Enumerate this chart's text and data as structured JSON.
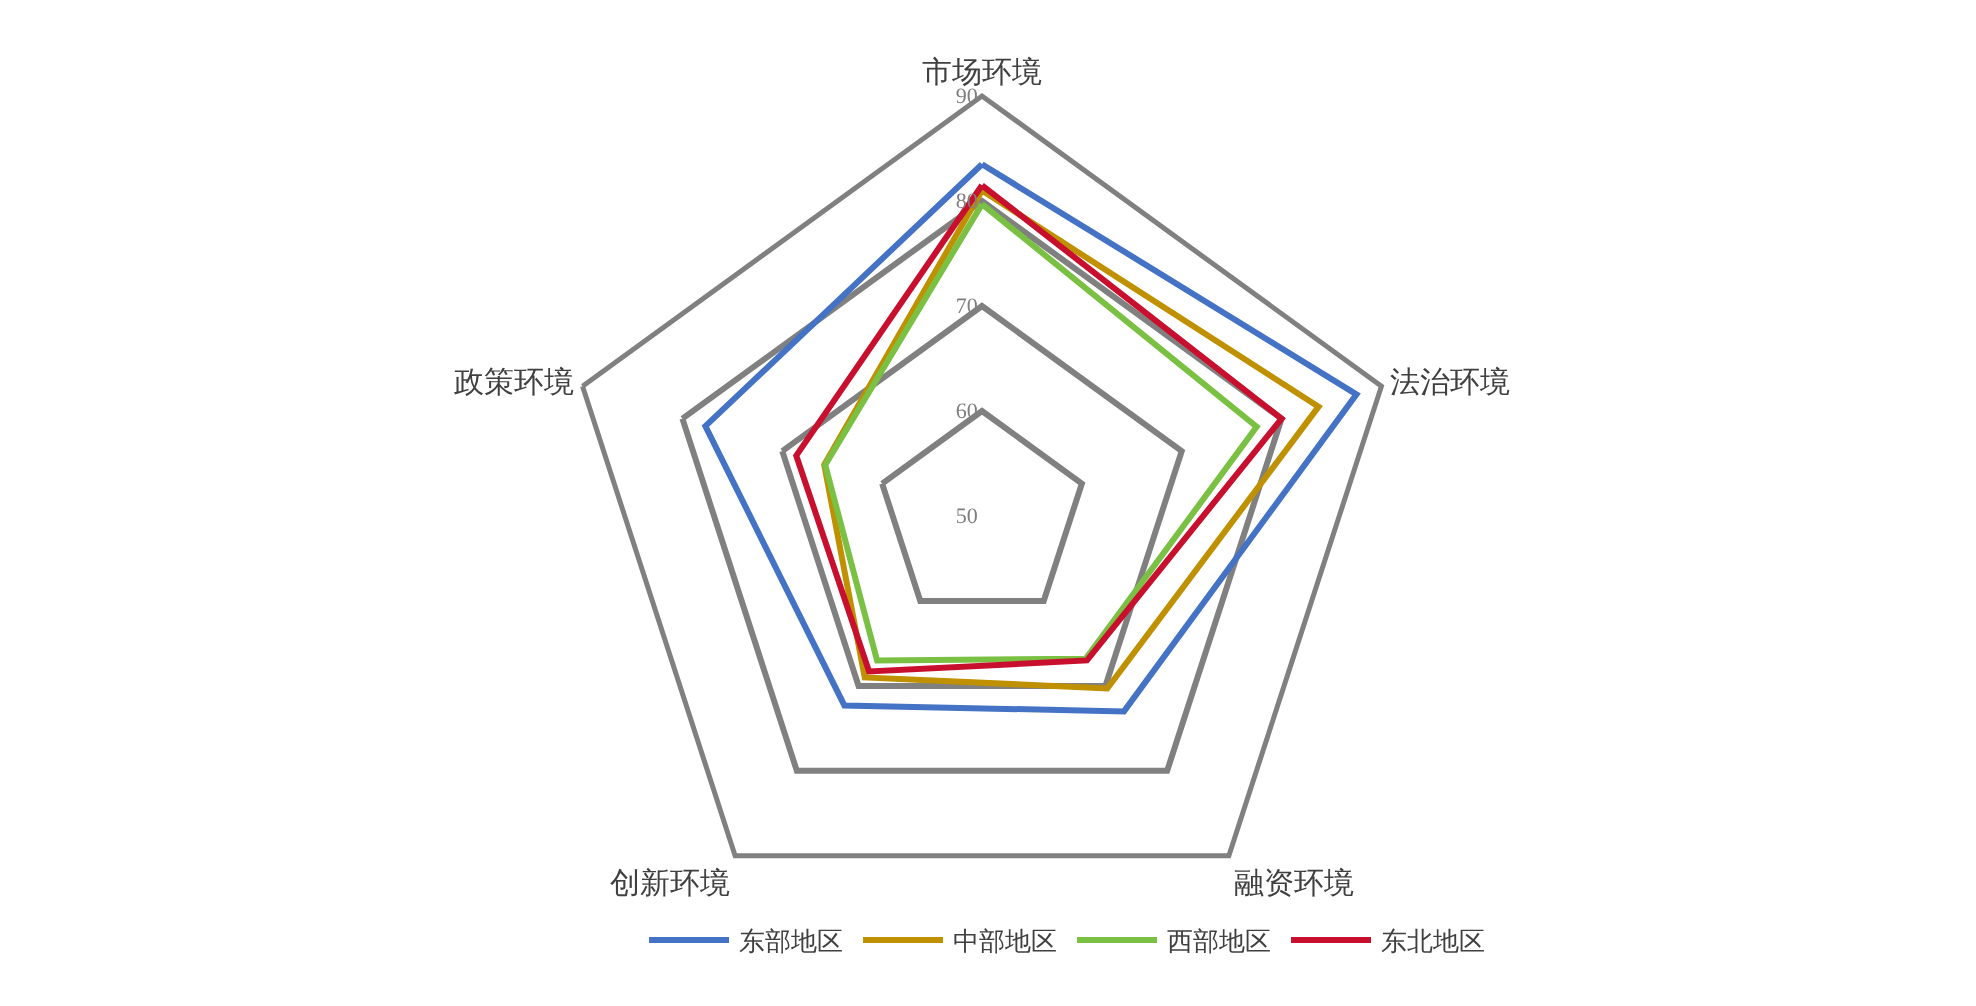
{
  "chart_data": {
    "type": "radar",
    "categories": [
      "市场环境",
      "法治环境",
      "融资环境",
      "创新环境",
      "政策环境"
    ],
    "series": [
      {
        "name": "东部地区",
        "color": "#4472c4",
        "values": [
          83.5,
          87.5,
          73,
          72.3,
          77.7
        ]
      },
      {
        "name": "中部地区",
        "color": "#bf9000",
        "values": [
          81,
          83.7,
          70.3,
          69,
          65.8
        ]
      },
      {
        "name": "西部地区",
        "color": "#7ac143",
        "values": [
          79.7,
          77.5,
          66.8,
          67,
          65.7
        ]
      },
      {
        "name": "东北地区",
        "color": "#c8102e",
        "values": [
          81.5,
          80,
          67,
          68.3,
          68.6
        ]
      }
    ],
    "ylim": [
      50,
      90
    ],
    "yticks": [
      50,
      60,
      70,
      80,
      90
    ],
    "grid": true,
    "legend": "bottom"
  }
}
